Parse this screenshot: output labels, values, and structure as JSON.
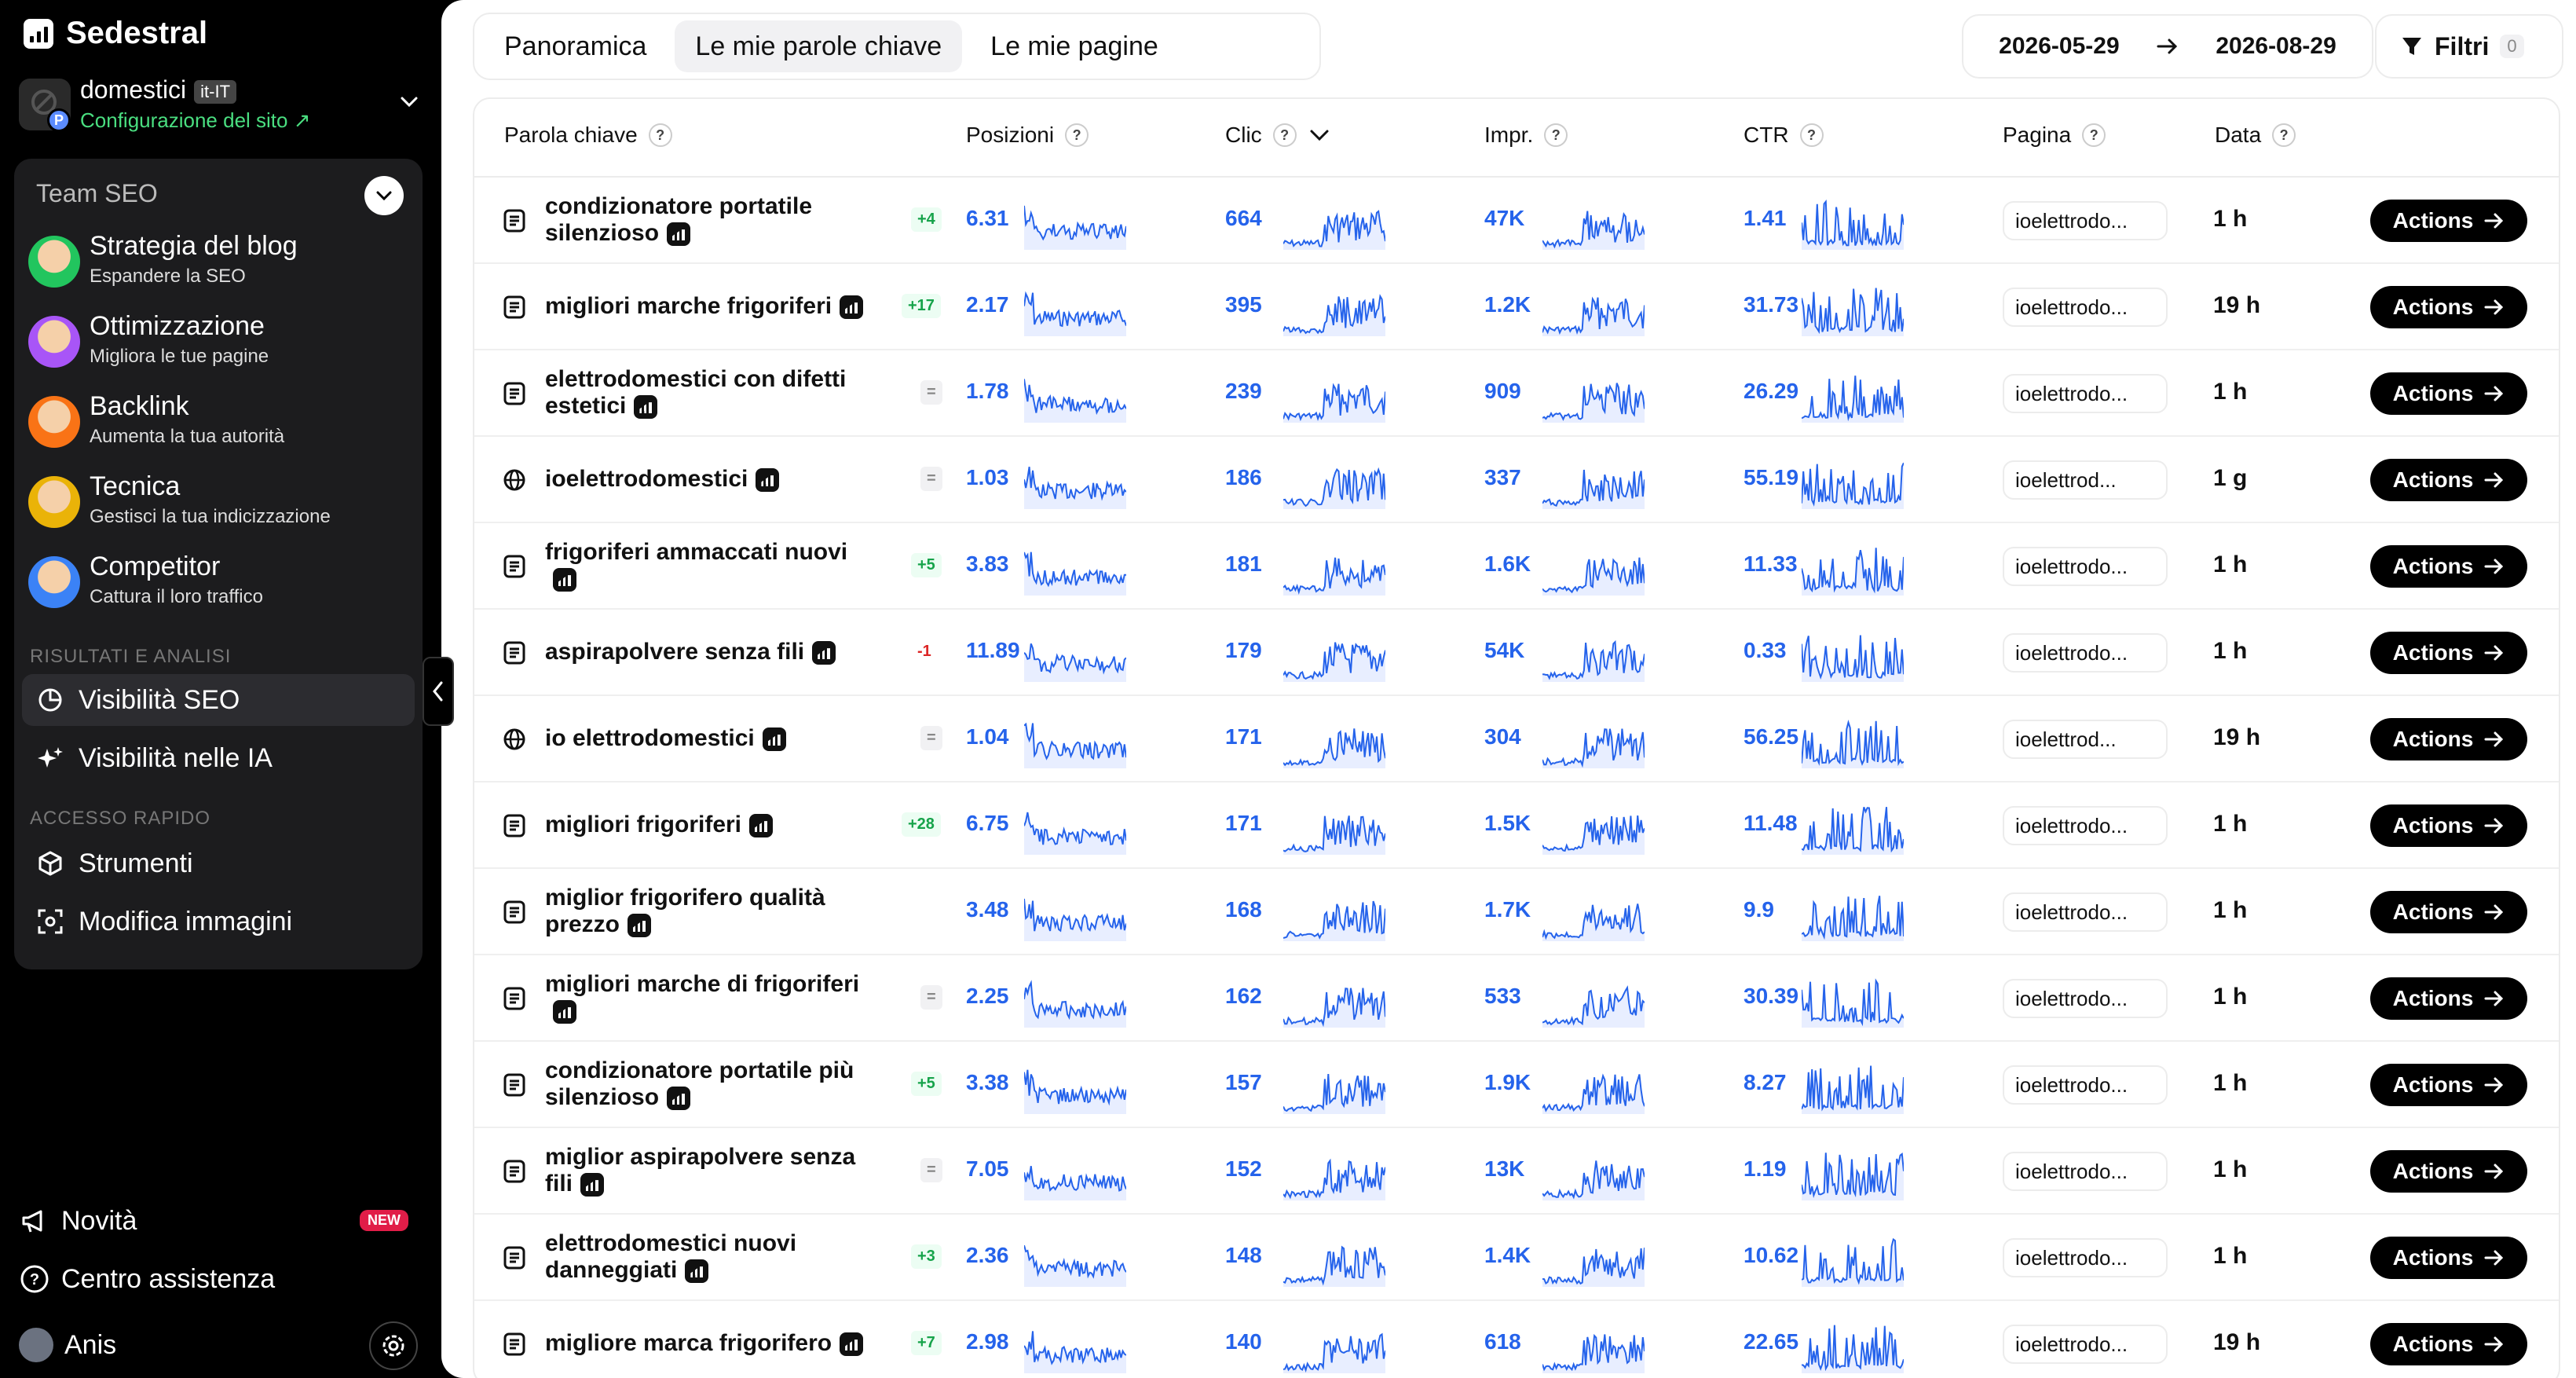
{
  "sidebar": {
    "brand": "Sedestral",
    "site": {
      "name": "domestici",
      "lang": "it-IT",
      "config_label": "Configurazione del sito",
      "avatar_badge": "P"
    },
    "team_title": "Team SEO",
    "agents": [
      {
        "title": "Strategia del blog",
        "subtitle": "Espandere la SEO",
        "color": "#22c55e"
      },
      {
        "title": "Ottimizzazione",
        "subtitle": "Migliora le tue pagine",
        "color": "#a855f7"
      },
      {
        "title": "Backlink",
        "subtitle": "Aumenta la tua autorità",
        "color": "#f97316"
      },
      {
        "title": "Tecnica",
        "subtitle": "Gestisci la tua indicizzazione",
        "color": "#eab308"
      },
      {
        "title": "Competitor",
        "subtitle": "Cattura il loro traffico",
        "color": "#3b82f6"
      }
    ],
    "section_results": "RISULTATI E ANALISI",
    "nav_results": [
      {
        "label": "Visibilità SEO",
        "icon": "pie-chart-icon",
        "active": true
      },
      {
        "label": "Visibilità nelle IA",
        "icon": "sparkles-icon",
        "active": false
      }
    ],
    "section_quick": "ACCESSO RAPIDO",
    "nav_quick": [
      {
        "label": "Strumenti",
        "icon": "cube-icon"
      },
      {
        "label": "Modifica immagini",
        "icon": "image-edit-icon"
      }
    ],
    "bottom": {
      "news": "Novità",
      "news_badge": "NEW",
      "help": "Centro assistenza",
      "user": "Anis"
    }
  },
  "header": {
    "tabs": [
      {
        "label": "Panoramica",
        "active": false
      },
      {
        "label": "Le mie parole chiave",
        "active": true
      },
      {
        "label": "Le mie pagine",
        "active": false
      }
    ],
    "date_from": "2026-05-29",
    "date_to": "2026-08-29",
    "filters_label": "Filtri",
    "filters_count": "0"
  },
  "table": {
    "columns": {
      "keyword": "Parola chiave",
      "positions": "Posizioni",
      "clicks": "Clic",
      "impressions": "Impr.",
      "ctr": "CTR",
      "page": "Pagina",
      "date": "Data",
      "help": "?"
    },
    "action_label": "Actions",
    "rows": [
      {
        "icon": "document",
        "keyword": "condizionatore portatile silenzioso",
        "delta": "+4",
        "dtype": "up",
        "pos": "6.31",
        "clicks": "664",
        "impr": "47K",
        "ctr": "1.41",
        "page": "ioelettrodo...",
        "date": "1 h",
        "seed": 1
      },
      {
        "icon": "document",
        "keyword": "migliori marche frigoriferi",
        "delta": "+17",
        "dtype": "up",
        "pos": "2.17",
        "clicks": "395",
        "impr": "1.2K",
        "ctr": "31.73",
        "page": "ioelettrodo...",
        "date": "19 h",
        "seed": 2
      },
      {
        "icon": "document",
        "keyword": "elettrodomestici con difetti estetici",
        "delta": "=",
        "dtype": "eq",
        "pos": "1.78",
        "clicks": "239",
        "impr": "909",
        "ctr": "26.29",
        "page": "ioelettrodo...",
        "date": "1 h",
        "seed": 3
      },
      {
        "icon": "globe",
        "keyword": "ioelettrodomestici",
        "delta": "=",
        "dtype": "eq",
        "pos": "1.03",
        "clicks": "186",
        "impr": "337",
        "ctr": "55.19",
        "page": "ioelettrod...",
        "date": "1 g",
        "seed": 4
      },
      {
        "icon": "document",
        "keyword": "frigoriferi ammaccati nuovi",
        "delta": "+5",
        "dtype": "up",
        "pos": "3.83",
        "clicks": "181",
        "impr": "1.6K",
        "ctr": "11.33",
        "page": "ioelettrodo...",
        "date": "1 h",
        "seed": 5
      },
      {
        "icon": "document",
        "keyword": "aspirapolvere senza fili",
        "delta": "-1",
        "dtype": "down",
        "pos": "11.89",
        "clicks": "179",
        "impr": "54K",
        "ctr": "0.33",
        "page": "ioelettrodo...",
        "date": "1 h",
        "seed": 6
      },
      {
        "icon": "globe",
        "keyword": "io elettrodomestici",
        "delta": "=",
        "dtype": "eq",
        "pos": "1.04",
        "clicks": "171",
        "impr": "304",
        "ctr": "56.25",
        "page": "ioelettrod...",
        "date": "19 h",
        "seed": 7
      },
      {
        "icon": "document",
        "keyword": "migliori frigoriferi",
        "delta": "+28",
        "dtype": "up",
        "pos": "6.75",
        "clicks": "171",
        "impr": "1.5K",
        "ctr": "11.48",
        "page": "ioelettrodo...",
        "date": "1 h",
        "seed": 8
      },
      {
        "icon": "document",
        "keyword": "miglior frigorifero qualità prezzo",
        "delta": "",
        "dtype": "none",
        "pos": "3.48",
        "clicks": "168",
        "impr": "1.7K",
        "ctr": "9.9",
        "page": "ioelettrodo...",
        "date": "1 h",
        "seed": 9
      },
      {
        "icon": "document",
        "keyword": "migliori marche di frigoriferi",
        "delta": "=",
        "dtype": "eq",
        "pos": "2.25",
        "clicks": "162",
        "impr": "533",
        "ctr": "30.39",
        "page": "ioelettrodo...",
        "date": "1 h",
        "seed": 10
      },
      {
        "icon": "document",
        "keyword": "condizionatore portatile più silenzioso",
        "delta": "+5",
        "dtype": "up",
        "pos": "3.38",
        "clicks": "157",
        "impr": "1.9K",
        "ctr": "8.27",
        "page": "ioelettrodo...",
        "date": "1 h",
        "seed": 11
      },
      {
        "icon": "document",
        "keyword": "miglior aspirapolvere senza fili",
        "delta": "=",
        "dtype": "eq",
        "pos": "7.05",
        "clicks": "152",
        "impr": "13K",
        "ctr": "1.19",
        "page": "ioelettrodo...",
        "date": "1 h",
        "seed": 12
      },
      {
        "icon": "document",
        "keyword": "elettrodomestici nuovi danneggiati",
        "delta": "+3",
        "dtype": "up",
        "pos": "2.36",
        "clicks": "148",
        "impr": "1.4K",
        "ctr": "10.62",
        "page": "ioelettrodo...",
        "date": "1 h",
        "seed": 13
      },
      {
        "icon": "document",
        "keyword": "migliore marca frigorifero",
        "delta": "+7",
        "dtype": "up",
        "pos": "2.98",
        "clicks": "140",
        "impr": "618",
        "ctr": "22.65",
        "page": "ioelettrodo...",
        "date": "19 h",
        "seed": 14
      }
    ]
  },
  "colors": {
    "accent": "#2563eb",
    "spark_fill": "#e8eeff"
  }
}
